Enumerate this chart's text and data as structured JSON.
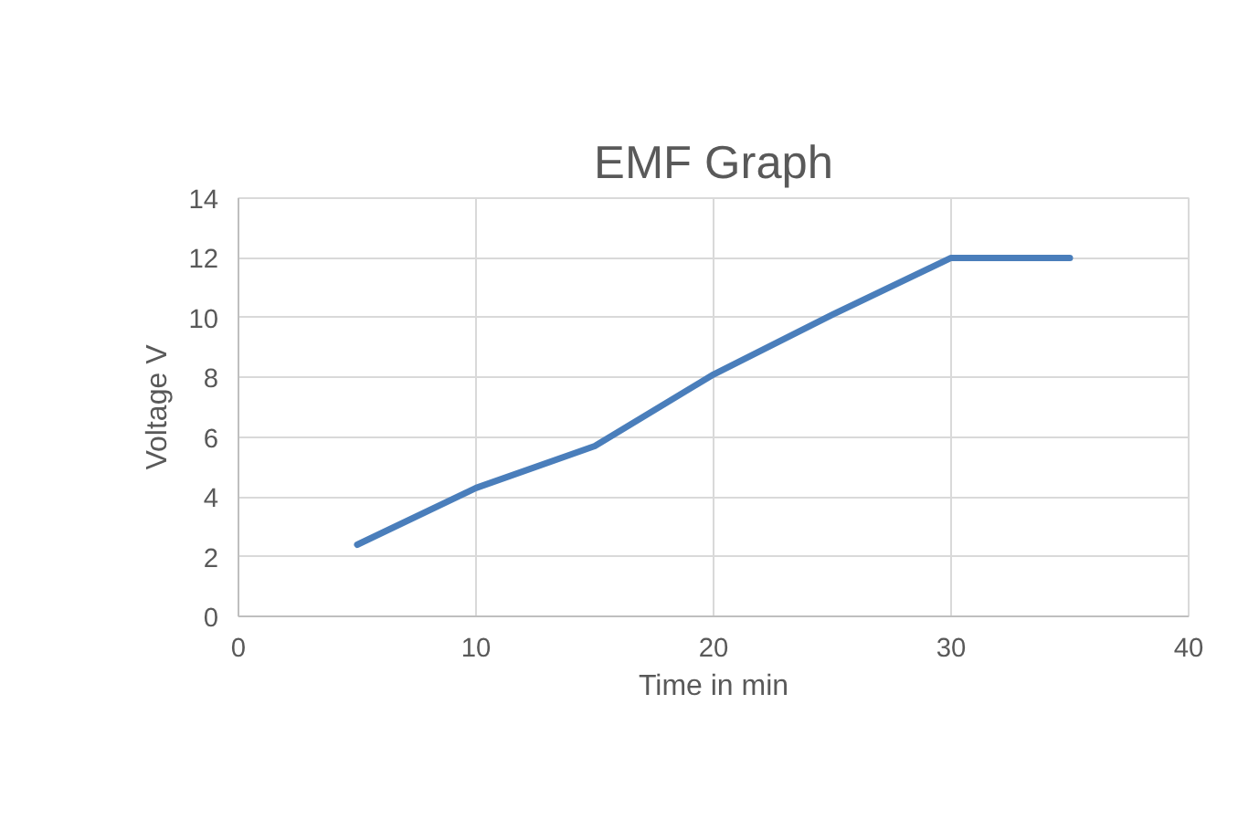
{
  "chart_data": {
    "type": "line",
    "title": "EMF Graph",
    "xlabel": "Time in min",
    "ylabel": "Voltage V",
    "x": [
      5,
      10,
      15,
      20,
      25,
      30,
      35
    ],
    "series": [
      {
        "color": "#4a7ebb",
        "values": [
          2.4,
          4.3,
          5.7,
          8.1,
          10.1,
          12,
          12
        ]
      }
    ],
    "xlim": [
      0,
      40
    ],
    "xticks": [
      0,
      10,
      20,
      30,
      40
    ],
    "ylim": [
      0,
      14
    ],
    "yticks": [
      0,
      2,
      4,
      6,
      8,
      10,
      12,
      14
    ],
    "grid": true,
    "marker": "none",
    "line_style": "solid"
  }
}
